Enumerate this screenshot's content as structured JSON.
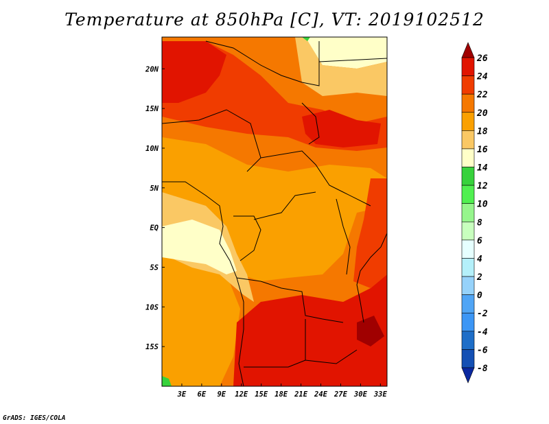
{
  "title": "Temperature at 850hPa [C], VT: 2019102512",
  "credit": "GrADS: IGES/COLA",
  "map": {
    "lon_range": [
      0,
      34
    ],
    "lat_range": [
      -20,
      24
    ],
    "lon_ticks": [
      "3E",
      "6E",
      "9E",
      "12E",
      "15E",
      "18E",
      "21E",
      "24E",
      "27E",
      "30E",
      "33E"
    ],
    "lat_ticks": [
      "20N",
      "15N",
      "10N",
      "5N",
      "EQ",
      "5S",
      "10S",
      "15S"
    ]
  },
  "colorbar": {
    "labels": [
      "26",
      "24",
      "22",
      "20",
      "18",
      "16",
      "14",
      "12",
      "10",
      "8",
      "6",
      "4",
      "2",
      "0",
      "-2",
      "-4",
      "-6",
      "-8"
    ],
    "colors": [
      "#a00000",
      "#e11400",
      "#f03c00",
      "#f57800",
      "#faa000",
      "#fac864",
      "#ffffc8",
      "#37d23c",
      "#50f050",
      "#96f58c",
      "#c8ffbe",
      "#e6ffff",
      "#b4f0fa",
      "#96d2fa",
      "#50a5f5",
      "#3c96f5",
      "#1e6ec8",
      "#1450b4",
      "#0a28a0"
    ]
  },
  "colors": {
    "t26": "#a00000",
    "t24": "#e11400",
    "t22": "#f03c00",
    "t20": "#f57800",
    "t18": "#faa000",
    "t16": "#fac864",
    "t14": "#ffffc8",
    "t12": "#37d23c"
  }
}
